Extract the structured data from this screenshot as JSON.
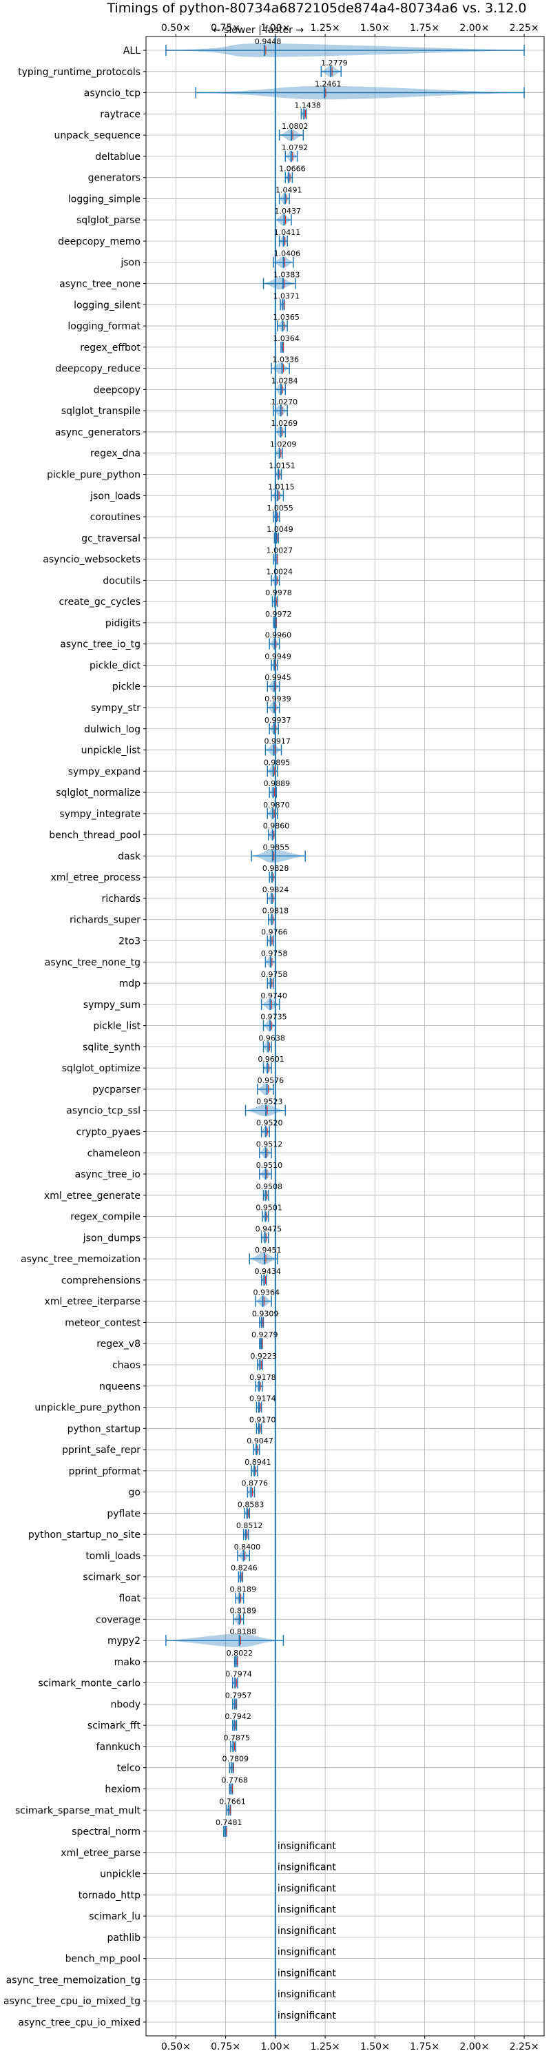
{
  "chart_data": {
    "type": "violin",
    "title": "Timings of python-80734a6872105de874a4-80734a6 vs. 3.12.0",
    "annotation": "← slower | faster →",
    "xlim": [
      0.35,
      2.35
    ],
    "xticks": [
      0.5,
      0.75,
      1.0,
      1.25,
      1.5,
      1.75,
      2.0,
      2.25
    ],
    "xtick_labels": [
      "0.50×",
      "0.75×",
      "1.00×",
      "1.25×",
      "1.50×",
      "1.75×",
      "2.00×",
      "2.25×"
    ],
    "reference_line": 1.0,
    "grid": true,
    "colors": {
      "violin": "#1f77b4",
      "median": "#1f77b4",
      "mean": "#d62728",
      "axes": "#000000",
      "grid": "#b0b0b0"
    },
    "insignificant_label": "insignificant",
    "benchmarks": [
      {
        "name": "ALL",
        "value": 0.9448,
        "label": "0.9448",
        "min": 0.45,
        "max": 2.25
      },
      {
        "name": "typing_runtime_protocols",
        "value": 1.2779,
        "label": "1.2779",
        "min": 1.23,
        "max": 1.33
      },
      {
        "name": "asyncio_tcp",
        "value": 1.2461,
        "label": "1.2461",
        "min": 0.6,
        "max": 2.25
      },
      {
        "name": "raytrace",
        "value": 1.1438,
        "label": "1.1438",
        "min": 1.13,
        "max": 1.155
      },
      {
        "name": "unpack_sequence",
        "value": 1.0802,
        "label": "1.0802",
        "min": 1.02,
        "max": 1.14
      },
      {
        "name": "deltablue",
        "value": 1.0792,
        "label": "1.0792",
        "min": 1.05,
        "max": 1.11
      },
      {
        "name": "generators",
        "value": 1.0666,
        "label": "1.0666",
        "min": 1.05,
        "max": 1.085
      },
      {
        "name": "logging_simple",
        "value": 1.0491,
        "label": "1.0491",
        "min": 1.02,
        "max": 1.07
      },
      {
        "name": "sqlglot_parse",
        "value": 1.0437,
        "label": "1.0437",
        "min": 1.0,
        "max": 1.08
      },
      {
        "name": "deepcopy_memo",
        "value": 1.0411,
        "label": "1.0411",
        "min": 1.02,
        "max": 1.06
      },
      {
        "name": "json",
        "value": 1.0406,
        "label": "1.0406",
        "min": 0.99,
        "max": 1.09
      },
      {
        "name": "async_tree_none",
        "value": 1.0383,
        "label": "1.0383",
        "min": 0.94,
        "max": 1.1
      },
      {
        "name": "logging_silent",
        "value": 1.0371,
        "label": "1.0371",
        "min": 1.025,
        "max": 1.045
      },
      {
        "name": "logging_format",
        "value": 1.0365,
        "label": "1.0365",
        "min": 1.01,
        "max": 1.06
      },
      {
        "name": "regex_effbot",
        "value": 1.0364,
        "label": "1.0364",
        "min": 1.028,
        "max": 1.04
      },
      {
        "name": "deepcopy_reduce",
        "value": 1.0336,
        "label": "1.0336",
        "min": 0.98,
        "max": 1.07
      },
      {
        "name": "deepcopy",
        "value": 1.0284,
        "label": "1.0284",
        "min": 1.0,
        "max": 1.05
      },
      {
        "name": "sqlglot_transpile",
        "value": 1.027,
        "label": "1.0270",
        "min": 0.99,
        "max": 1.06
      },
      {
        "name": "async_generators",
        "value": 1.0269,
        "label": "1.0269",
        "min": 1.0,
        "max": 1.05
      },
      {
        "name": "regex_dna",
        "value": 1.0209,
        "label": "1.0209",
        "min": 1.0,
        "max": 1.035
      },
      {
        "name": "pickle_pure_python",
        "value": 1.0151,
        "label": "1.0151",
        "min": 1.0,
        "max": 1.03
      },
      {
        "name": "json_loads",
        "value": 1.0115,
        "label": "1.0115",
        "min": 0.98,
        "max": 1.04
      },
      {
        "name": "coroutines",
        "value": 1.0055,
        "label": "1.0055",
        "min": 0.99,
        "max": 1.02
      },
      {
        "name": "gc_traversal",
        "value": 1.0049,
        "label": "1.0049",
        "min": 0.995,
        "max": 1.015
      },
      {
        "name": "asyncio_websockets",
        "value": 1.0027,
        "label": "1.0027",
        "min": 0.99,
        "max": 1.01
      },
      {
        "name": "docutils",
        "value": 1.0024,
        "label": "1.0024",
        "min": 0.98,
        "max": 1.02
      },
      {
        "name": "create_gc_cycles",
        "value": 0.9978,
        "label": "0.9978",
        "min": 0.985,
        "max": 1.01
      },
      {
        "name": "pidigits",
        "value": 0.9972,
        "label": "0.9972",
        "min": 0.99,
        "max": 1.005
      },
      {
        "name": "async_tree_io_tg",
        "value": 0.996,
        "label": "0.9960",
        "min": 0.97,
        "max": 1.02
      },
      {
        "name": "pickle_dict",
        "value": 0.9949,
        "label": "0.9949",
        "min": 0.98,
        "max": 1.01
      },
      {
        "name": "pickle",
        "value": 0.9945,
        "label": "0.9945",
        "min": 0.96,
        "max": 1.02
      },
      {
        "name": "sympy_str",
        "value": 0.9939,
        "label": "0.9939",
        "min": 0.96,
        "max": 1.02
      },
      {
        "name": "dulwich_log",
        "value": 0.9937,
        "label": "0.9937",
        "min": 0.97,
        "max": 1.015
      },
      {
        "name": "unpickle_list",
        "value": 0.9917,
        "label": "0.9917",
        "min": 0.95,
        "max": 1.03
      },
      {
        "name": "sympy_expand",
        "value": 0.9895,
        "label": "0.9895",
        "min": 0.96,
        "max": 1.01
      },
      {
        "name": "sqlglot_normalize",
        "value": 0.9889,
        "label": "0.9889",
        "min": 0.97,
        "max": 1.005
      },
      {
        "name": "sympy_integrate",
        "value": 0.987,
        "label": "0.9870",
        "min": 0.96,
        "max": 1.01
      },
      {
        "name": "bench_thread_pool",
        "value": 0.986,
        "label": "0.9860",
        "min": 0.965,
        "max": 1.0
      },
      {
        "name": "dask",
        "value": 0.9855,
        "label": "0.9855",
        "min": 0.88,
        "max": 1.15
      },
      {
        "name": "xml_etree_process",
        "value": 0.9828,
        "label": "0.9828",
        "min": 0.97,
        "max": 1.0
      },
      {
        "name": "richards",
        "value": 0.9824,
        "label": "0.9824",
        "min": 0.96,
        "max": 1.0
      },
      {
        "name": "richards_super",
        "value": 0.9818,
        "label": "0.9818",
        "min": 0.965,
        "max": 1.0
      },
      {
        "name": "2to3",
        "value": 0.9766,
        "label": "0.9766",
        "min": 0.96,
        "max": 0.99
      },
      {
        "name": "async_tree_none_tg",
        "value": 0.9758,
        "label": "0.9758",
        "min": 0.95,
        "max": 1.0
      },
      {
        "name": "mdp",
        "value": 0.9758,
        "label": "0.9758",
        "min": 0.96,
        "max": 0.99
      },
      {
        "name": "sympy_sum",
        "value": 0.974,
        "label": "0.9740",
        "min": 0.93,
        "max": 1.02
      },
      {
        "name": "pickle_list",
        "value": 0.9735,
        "label": "0.9735",
        "min": 0.94,
        "max": 1.0
      },
      {
        "name": "sqlite_synth",
        "value": 0.9638,
        "label": "0.9638",
        "min": 0.94,
        "max": 0.98
      },
      {
        "name": "sqlglot_optimize",
        "value": 0.9601,
        "label": "0.9601",
        "min": 0.94,
        "max": 0.98
      },
      {
        "name": "pycparser",
        "value": 0.9576,
        "label": "0.9576",
        "min": 0.91,
        "max": 0.99
      },
      {
        "name": "asyncio_tcp_ssl",
        "value": 0.9523,
        "label": "0.9523",
        "min": 0.85,
        "max": 1.05
      },
      {
        "name": "crypto_pyaes",
        "value": 0.952,
        "label": "0.9520",
        "min": 0.93,
        "max": 0.97
      },
      {
        "name": "chameleon",
        "value": 0.9512,
        "label": "0.9512",
        "min": 0.92,
        "max": 0.98
      },
      {
        "name": "async_tree_io",
        "value": 0.951,
        "label": "0.9510",
        "min": 0.92,
        "max": 0.98
      },
      {
        "name": "xml_etree_generate",
        "value": 0.9508,
        "label": "0.9508",
        "min": 0.94,
        "max": 0.965
      },
      {
        "name": "regex_compile",
        "value": 0.9501,
        "label": "0.9501",
        "min": 0.935,
        "max": 0.965
      },
      {
        "name": "json_dumps",
        "value": 0.9475,
        "label": "0.9475",
        "min": 0.93,
        "max": 0.965
      },
      {
        "name": "async_tree_memoization",
        "value": 0.9451,
        "label": "0.9451",
        "min": 0.87,
        "max": 1.01
      },
      {
        "name": "comprehensions",
        "value": 0.9434,
        "label": "0.9434",
        "min": 0.93,
        "max": 0.955
      },
      {
        "name": "xml_etree_iterparse",
        "value": 0.9364,
        "label": "0.9364",
        "min": 0.9,
        "max": 0.98
      },
      {
        "name": "meteor_contest",
        "value": 0.9309,
        "label": "0.9309",
        "min": 0.92,
        "max": 0.94
      },
      {
        "name": "regex_v8",
        "value": 0.9279,
        "label": "0.9279",
        "min": 0.92,
        "max": 0.935
      },
      {
        "name": "chaos",
        "value": 0.9223,
        "label": "0.9223",
        "min": 0.91,
        "max": 0.935
      },
      {
        "name": "nqueens",
        "value": 0.9178,
        "label": "0.9178",
        "min": 0.9,
        "max": 0.935
      },
      {
        "name": "unpickle_pure_python",
        "value": 0.9174,
        "label": "0.9174",
        "min": 0.905,
        "max": 0.93
      },
      {
        "name": "python_startup",
        "value": 0.917,
        "label": "0.9170",
        "min": 0.905,
        "max": 0.93
      },
      {
        "name": "pprint_safe_repr",
        "value": 0.9047,
        "label": "0.9047",
        "min": 0.89,
        "max": 0.92
      },
      {
        "name": "pprint_pformat",
        "value": 0.8941,
        "label": "0.8941",
        "min": 0.88,
        "max": 0.91
      },
      {
        "name": "go",
        "value": 0.8776,
        "label": "0.8776",
        "min": 0.86,
        "max": 0.895
      },
      {
        "name": "pyflate",
        "value": 0.8583,
        "label": "0.8583",
        "min": 0.845,
        "max": 0.87
      },
      {
        "name": "python_startup_no_site",
        "value": 0.8512,
        "label": "0.8512",
        "min": 0.84,
        "max": 0.865
      },
      {
        "name": "tomli_loads",
        "value": 0.84,
        "label": "0.8400",
        "min": 0.81,
        "max": 0.87
      },
      {
        "name": "scimark_sor",
        "value": 0.8246,
        "label": "0.8246",
        "min": 0.815,
        "max": 0.835
      },
      {
        "name": "float",
        "value": 0.8189,
        "label": "0.8189",
        "min": 0.8,
        "max": 0.84
      },
      {
        "name": "coverage",
        "value": 0.8189,
        "label": "0.8189",
        "min": 0.79,
        "max": 0.84
      },
      {
        "name": "mypy2",
        "value": 0.8188,
        "label": "0.8188",
        "min": 0.45,
        "max": 1.04
      },
      {
        "name": "mako",
        "value": 0.8022,
        "label": "0.8022",
        "min": 0.795,
        "max": 0.81
      },
      {
        "name": "scimark_monte_carlo",
        "value": 0.7974,
        "label": "0.7974",
        "min": 0.785,
        "max": 0.81
      },
      {
        "name": "nbody",
        "value": 0.7957,
        "label": "0.7957",
        "min": 0.785,
        "max": 0.805
      },
      {
        "name": "scimark_fft",
        "value": 0.7942,
        "label": "0.7942",
        "min": 0.785,
        "max": 0.805
      },
      {
        "name": "fannkuch",
        "value": 0.7875,
        "label": "0.7875",
        "min": 0.775,
        "max": 0.8
      },
      {
        "name": "telco",
        "value": 0.7809,
        "label": "0.7809",
        "min": 0.77,
        "max": 0.79
      },
      {
        "name": "hexiom",
        "value": 0.7768,
        "label": "0.7768",
        "min": 0.77,
        "max": 0.785
      },
      {
        "name": "scimark_sparse_mat_mult",
        "value": 0.7661,
        "label": "0.7661",
        "min": 0.755,
        "max": 0.775
      },
      {
        "name": "spectral_norm",
        "value": 0.7481,
        "label": "0.7481",
        "min": 0.74,
        "max": 0.755
      },
      {
        "name": "xml_etree_parse",
        "value": null,
        "label": "insignificant"
      },
      {
        "name": "unpickle",
        "value": null,
        "label": "insignificant"
      },
      {
        "name": "tornado_http",
        "value": null,
        "label": "insignificant"
      },
      {
        "name": "scimark_lu",
        "value": null,
        "label": "insignificant"
      },
      {
        "name": "pathlib",
        "value": null,
        "label": "insignificant"
      },
      {
        "name": "bench_mp_pool",
        "value": null,
        "label": "insignificant"
      },
      {
        "name": "async_tree_memoization_tg",
        "value": null,
        "label": "insignificant"
      },
      {
        "name": "async_tree_cpu_io_mixed_tg",
        "value": null,
        "label": "insignificant"
      },
      {
        "name": "async_tree_cpu_io_mixed",
        "value": null,
        "label": "insignificant"
      }
    ]
  }
}
